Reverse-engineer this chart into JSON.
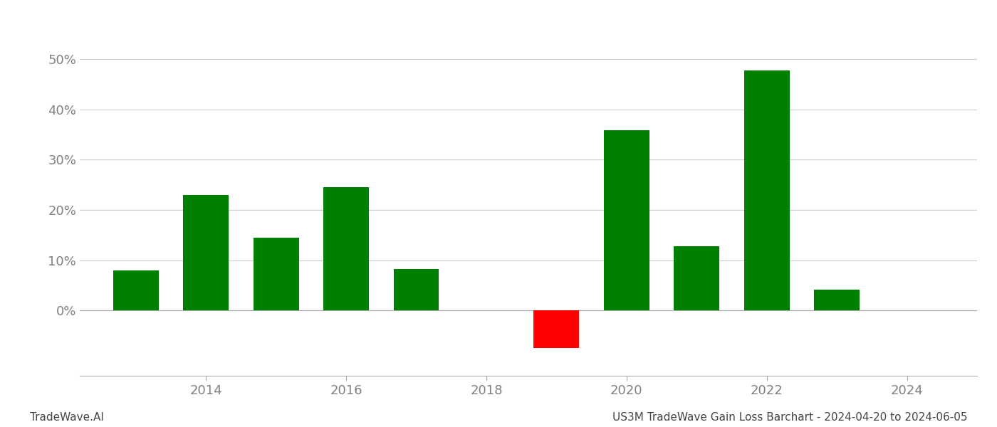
{
  "years": [
    2013,
    2014,
    2015,
    2016,
    2017,
    2019,
    2020,
    2021,
    2022,
    2023
  ],
  "values": [
    0.08,
    0.23,
    0.145,
    0.245,
    0.082,
    -0.075,
    0.358,
    0.128,
    0.478,
    0.042
  ],
  "colors": [
    "#008000",
    "#008000",
    "#008000",
    "#008000",
    "#008000",
    "#ff0000",
    "#008000",
    "#008000",
    "#008000",
    "#008000"
  ],
  "bar_width": 0.65,
  "xlim": [
    2012.2,
    2025.0
  ],
  "ylim": [
    -0.13,
    0.575
  ],
  "yticks": [
    0.0,
    0.1,
    0.2,
    0.3,
    0.4,
    0.5
  ],
  "xticks": [
    2014,
    2016,
    2018,
    2020,
    2022,
    2024
  ],
  "title": "US3M TradeWave Gain Loss Barchart - 2024-04-20 to 2024-06-05",
  "footer_left": "TradeWave.AI",
  "grid_color": "#cccccc",
  "bg_color": "#ffffff",
  "axis_label_color": "#808080",
  "tick_label_fontsize": 13,
  "footer_fontsize": 11
}
